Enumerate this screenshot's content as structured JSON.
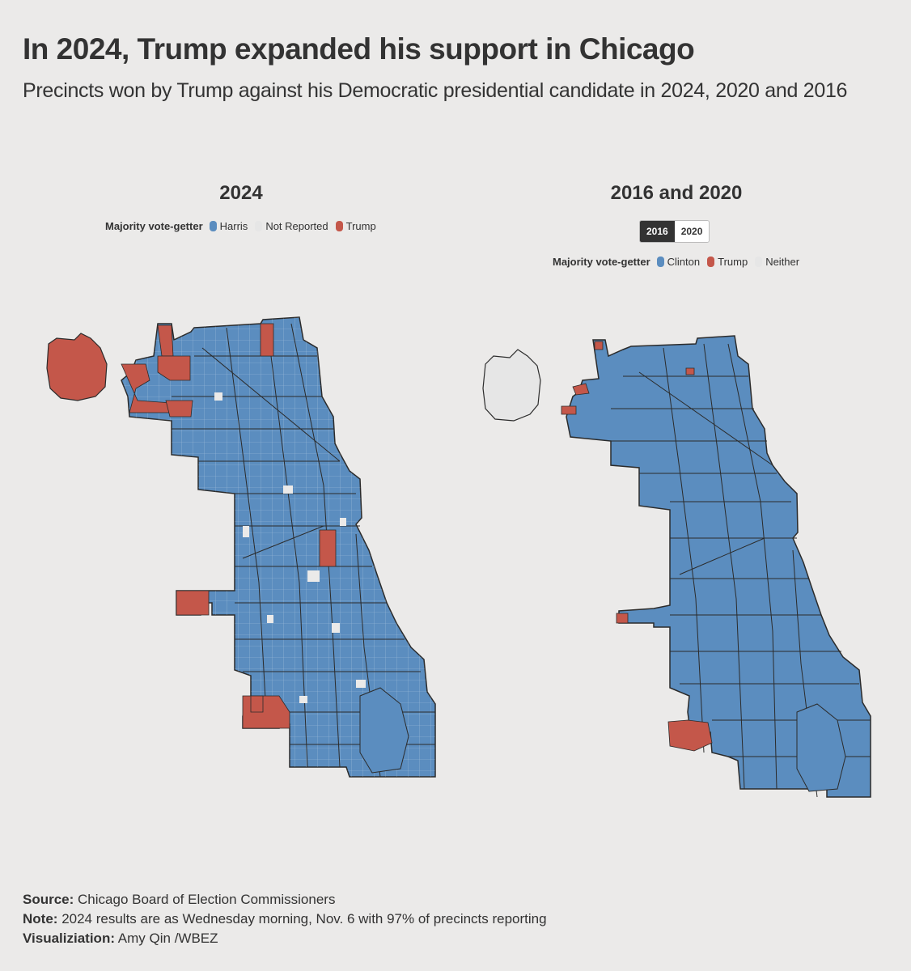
{
  "headline": "In 2024, Trump expanded his support in Chicago",
  "subhead": "Precincts won by Trump against his Democratic presidential candidate in 2024, 2020 and 2016",
  "colors": {
    "dem": "#5b8dbf",
    "trump": "#c4574a",
    "none": "#e6e6e6",
    "bg": "#ebeae9",
    "boundary": "#2b2b2b"
  },
  "left_panel": {
    "title": "2024",
    "legend_title": "Majority vote-getter",
    "legend": [
      {
        "label": "Harris",
        "color": "#5b8dbf"
      },
      {
        "label": "Not Reported",
        "color": "#e6e6e6"
      },
      {
        "label": "Trump",
        "color": "#c4574a"
      }
    ]
  },
  "right_panel": {
    "title": "2016 and 2020",
    "toggle": {
      "options": [
        "2016",
        "2020"
      ],
      "selected": "2016"
    },
    "legend_title": "Majority vote-getter",
    "legend": [
      {
        "label": "Clinton",
        "color": "#5b8dbf"
      },
      {
        "label": "Trump",
        "color": "#c4574a"
      },
      {
        "label": "Neither",
        "color": "#e6e6e6"
      }
    ]
  },
  "footer": {
    "source_label": "Source:",
    "source_text": "Chicago Board of Election Commissioners",
    "note_label": "Note:",
    "note_text": "2024 results are as Wednesday morning, Nov. 6 with 97% of precincts reporting",
    "viz_label": "Visualiziation:",
    "viz_text": "Amy Qin /WBEZ"
  }
}
